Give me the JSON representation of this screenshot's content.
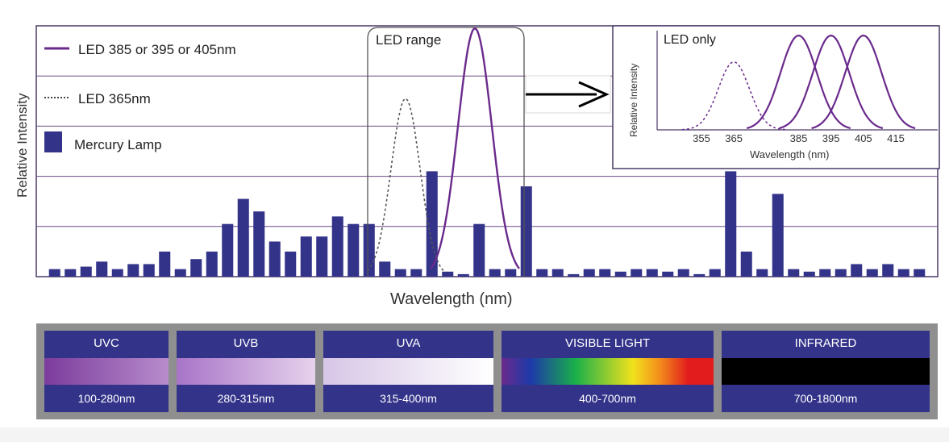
{
  "legend": {
    "led_purple": "LED 385 or 395 or 405nm",
    "led_dotted": "LED 365nm",
    "mercury": "Mercury Lamp"
  },
  "led_range_label": "LED range",
  "colors": {
    "bar": "#33338a",
    "led_line": "#6a2a8c",
    "grid": "#6b4a86",
    "frame": "#4a3a66"
  },
  "chart_data": [
    {
      "type": "bar",
      "title": "",
      "xlabel": "Wavelength (nm)",
      "ylabel": "Relative Intensity",
      "ylim": [
        0,
        5
      ],
      "grid": true,
      "legend_placement": "top-left",
      "series": [
        {
          "name": "Mercury Lamp",
          "values": [
            0.15,
            0.15,
            0.2,
            0.3,
            0.15,
            0.25,
            0.25,
            0.5,
            0.15,
            0.35,
            0.5,
            1.05,
            1.55,
            1.3,
            0.7,
            0.5,
            0.8,
            0.8,
            1.2,
            1.05,
            1.05,
            0.3,
            0.15,
            0.15,
            2.1,
            0.1,
            0.05,
            1.05,
            0.15,
            0.15,
            1.8,
            0.15,
            0.15,
            0.05,
            0.15,
            0.15,
            0.1,
            0.15,
            0.15,
            0.1,
            0.15,
            0.05,
            0.15,
            2.1,
            0.5,
            0.15,
            1.65,
            0.15,
            0.1,
            0.15,
            0.15,
            0.25,
            0.15,
            0.25,
            0.15,
            0.15
          ]
        },
        {
          "name": "LED 365nm",
          "type": "line",
          "x": [
            0,
            0.1,
            0.2,
            0.3,
            0.4,
            0.5,
            0.6,
            0.7,
            0.8,
            0.9,
            1.0
          ],
          "values": [
            0,
            0.1,
            0.5,
            1.6,
            3.2,
            3.6,
            2.8,
            1.2,
            0.4,
            0.1,
            0
          ]
        },
        {
          "name": "LED 385 or 395 or 405nm",
          "type": "line",
          "x": [
            0,
            0.1,
            0.2,
            0.3,
            0.4,
            0.5,
            0.6,
            0.7,
            0.8,
            0.9,
            1.0
          ],
          "values": [
            0,
            0.1,
            0.6,
            2.2,
            4.3,
            5.0,
            4.3,
            2.2,
            0.6,
            0.1,
            0
          ]
        }
      ]
    },
    {
      "type": "line",
      "title": "LED only",
      "xlabel": "Wavelength (nm)",
      "ylabel": "Relative Intensity",
      "x_ticks": [
        "355",
        "365",
        "385",
        "395",
        "405",
        "415"
      ],
      "xlim": [
        350,
        420
      ],
      "ylim": [
        0,
        1
      ],
      "series": [
        {
          "name": "LED 365nm",
          "peak": 365,
          "peak_value": 0.72,
          "style": "dotted"
        },
        {
          "name": "LED 385nm",
          "peak": 385,
          "peak_value": 1.0,
          "style": "solid"
        },
        {
          "name": "LED 395nm",
          "peak": 395,
          "peak_value": 1.0,
          "style": "solid"
        },
        {
          "name": "LED 405nm",
          "peak": 405,
          "peak_value": 1.0,
          "style": "solid"
        }
      ]
    }
  ],
  "spectrum": [
    {
      "name": "UVC",
      "range": "100-280nm",
      "gradient": "linear-gradient(90deg,#7c3c9c,#b78ccc)"
    },
    {
      "name": "UVB",
      "range": "280-315nm",
      "gradient": "linear-gradient(90deg,#a874c8,#e6d2ec)"
    },
    {
      "name": "UVA",
      "range": "315-400nm",
      "gradient": "linear-gradient(90deg,#d7c6e6,#ffffff)"
    },
    {
      "name": "VISIBLE LIGHT",
      "range": "400-700nm",
      "gradient": "linear-gradient(90deg,#6a2a8c,#1c3aa8 14%,#1ab04a 35%,#f2e21c 62%,#f28a1c 75%,#e21c1c 88%)"
    },
    {
      "name": "INFRARED",
      "range": "700-1800nm",
      "gradient": "linear-gradient(90deg,#000000,#000000)"
    }
  ]
}
